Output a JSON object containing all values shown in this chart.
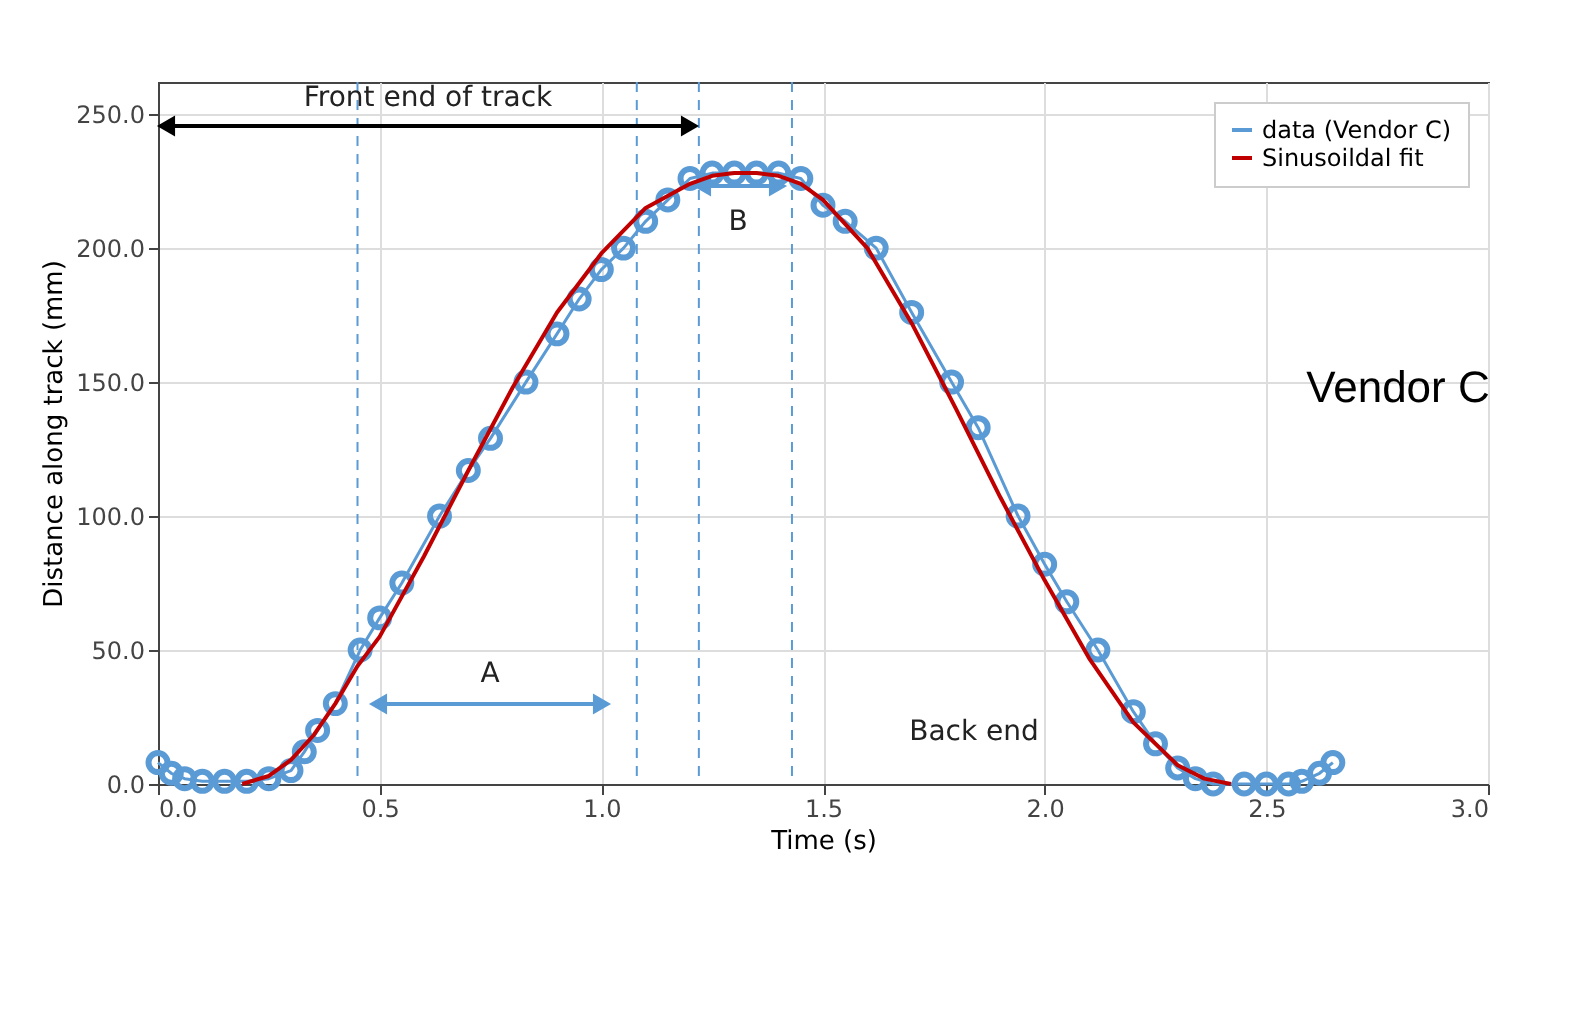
{
  "chart_data": {
    "type": "line",
    "xlabel": "Time (s)",
    "ylabel": "Distance along track (mm)",
    "xlim": [
      0,
      3
    ],
    "ylim": [
      0,
      262
    ],
    "xticks": [
      {
        "value": 0,
        "label": "0.0"
      },
      {
        "value": 0.5,
        "label": "0.5"
      },
      {
        "value": 1,
        "label": "1.0"
      },
      {
        "value": 1.5,
        "label": "1.5"
      },
      {
        "value": 2,
        "label": "2.0"
      },
      {
        "value": 2.5,
        "label": "2.5"
      },
      {
        "value": 3,
        "label": "3.0"
      }
    ],
    "yticks": [
      {
        "value": 0,
        "label": "0.0"
      },
      {
        "value": 50,
        "label": "50.0"
      },
      {
        "value": 100,
        "label": "100.0"
      },
      {
        "value": 150,
        "label": "150.0"
      },
      {
        "value": 200,
        "label": "200.0"
      },
      {
        "value": 250,
        "label": "250.0"
      }
    ],
    "grid": true,
    "legend": "top right",
    "series": [
      {
        "name": "data (Vendor C)",
        "color": "#5b9bd5",
        "marker": "circle",
        "x": [
          0,
          0.03,
          0.06,
          0.1,
          0.15,
          0.2,
          0.25,
          0.3,
          0.33,
          0.36,
          0.4,
          0.456,
          0.5,
          0.55,
          0.635,
          0.7,
          0.75,
          0.83,
          0.9,
          0.95,
          1.0,
          1.05,
          1.1,
          1.15,
          1.2,
          1.25,
          1.3,
          1.35,
          1.4,
          1.45,
          1.5,
          1.55,
          1.62,
          1.7,
          1.79,
          1.85,
          1.94,
          2.0,
          2.05,
          2.12,
          2.2,
          2.25,
          2.3,
          2.34,
          2.38,
          2.45,
          2.5,
          2.55,
          2.58,
          2.62,
          2.65
        ],
        "values": [
          8,
          4,
          2,
          1,
          1,
          1,
          2,
          5,
          12,
          20,
          30,
          50,
          62,
          75,
          100,
          117,
          129,
          150,
          168,
          181,
          192,
          200,
          210,
          218,
          226,
          228,
          228,
          228,
          228,
          226,
          216,
          210,
          200,
          176,
          150,
          133,
          100,
          82,
          68,
          50,
          27,
          15,
          6,
          2,
          0,
          0,
          0,
          0,
          1,
          4,
          8
        ]
      },
      {
        "name": "Sinusoildal fit",
        "color": "#c00000",
        "marker": "none",
        "x": [
          0.19,
          0.25,
          0.3,
          0.35,
          0.4,
          0.45,
          0.5,
          0.6,
          0.7,
          0.8,
          0.9,
          1.0,
          1.1,
          1.2,
          1.25,
          1.3,
          1.35,
          1.4,
          1.45,
          1.5,
          1.6,
          1.7,
          1.8,
          1.9,
          2.0,
          2.1,
          2.2,
          2.3,
          2.36,
          2.42
        ],
        "values": [
          0,
          3,
          9,
          18,
          30,
          44,
          55,
          85,
          117,
          148,
          176,
          198,
          215,
          224,
          227,
          228,
          228,
          227,
          224,
          218,
          200,
          172,
          140,
          107,
          76,
          47,
          23,
          7,
          2,
          0
        ]
      }
    ],
    "ref_lines": [
      {
        "axis": "x",
        "value": 0.45,
        "color": "#5b9bd5",
        "line_style": "dashed"
      },
      {
        "axis": "x",
        "value": 1.08,
        "color": "#5b9bd5",
        "line_style": "dashed"
      },
      {
        "axis": "x",
        "value": 1.22,
        "color": "#5b9bd5",
        "line_style": "dashed"
      },
      {
        "axis": "x",
        "value": 1.43,
        "color": "#5b9bd5",
        "line_style": "dashed"
      }
    ],
    "annotations": [
      "Front end of track",
      "A",
      "B",
      "Back end",
      "Vendor C"
    ]
  }
}
